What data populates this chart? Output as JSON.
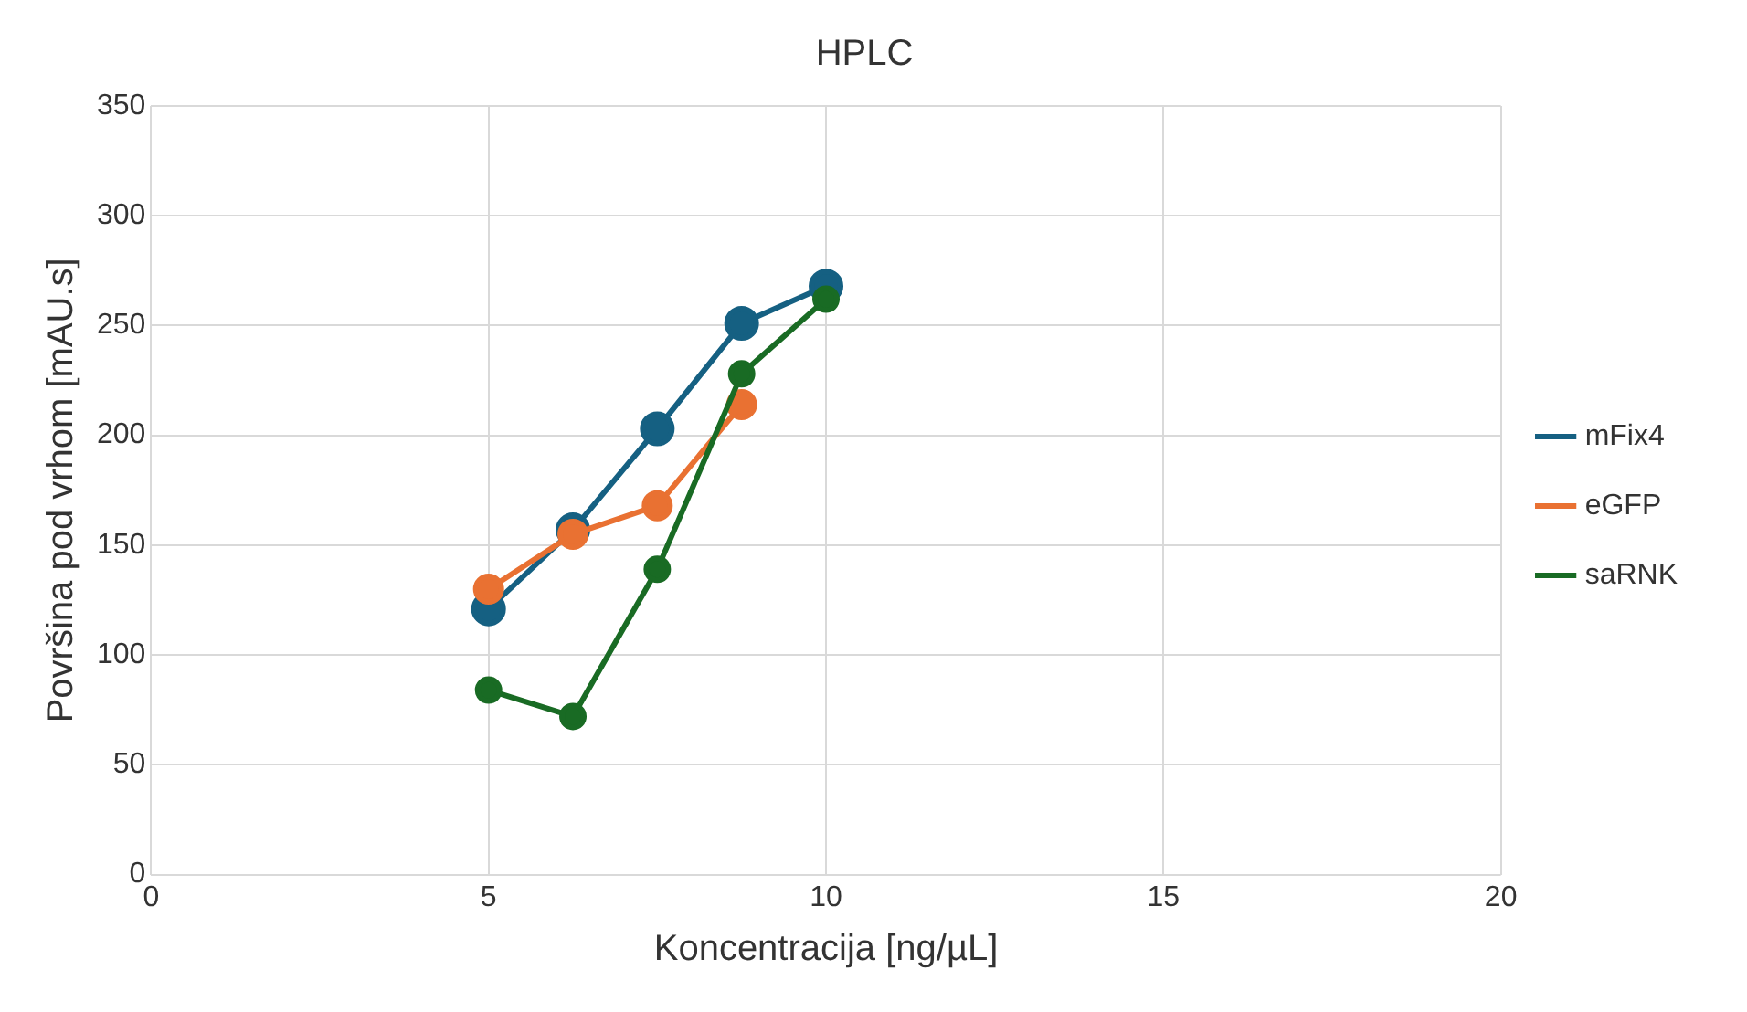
{
  "chart_data": {
    "type": "line",
    "title": "HPLC",
    "xlabel": "Koncentracija [ng/µL]",
    "ylabel": "Površina pod vrhom [mAU.s]",
    "x": [
      5,
      6.25,
      7.5,
      8.75,
      10
    ],
    "series": [
      {
        "name": "mFix4",
        "color": "#156082",
        "values": [
          121,
          157,
          203,
          251,
          268
        ]
      },
      {
        "name": "eGFP",
        "color": "#e97132",
        "values": [
          130,
          155,
          168,
          214,
          null
        ]
      },
      {
        "name": "saRNK",
        "color": "#196b24",
        "values": [
          84,
          72,
          139,
          228,
          262
        ]
      }
    ],
    "xlim": [
      0,
      20
    ],
    "xticks": [
      0,
      5,
      10,
      15,
      20
    ],
    "ylim": [
      0,
      350
    ],
    "yticks": [
      0,
      50,
      100,
      150,
      200,
      250,
      300,
      350
    ],
    "grid": true,
    "legend": "right",
    "marker": "circle",
    "line_style": "solid"
  }
}
